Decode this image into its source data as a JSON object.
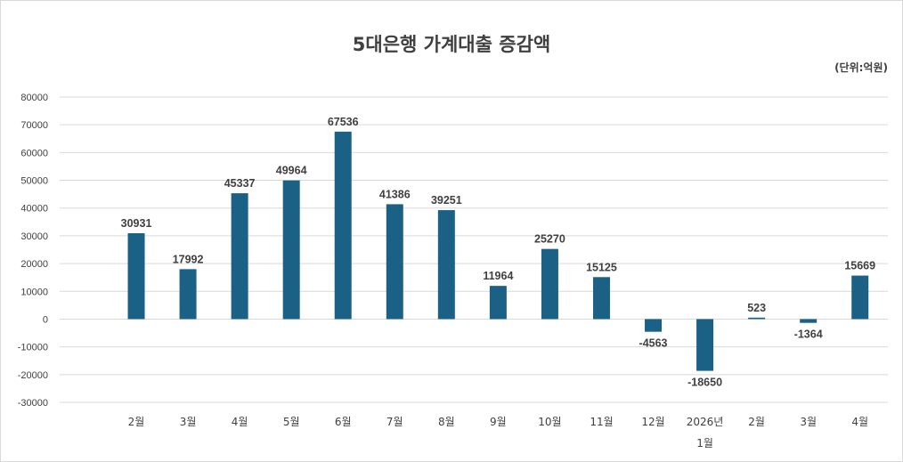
{
  "chart_data": {
    "type": "bar",
    "title": "5대은행 가계대출 증감액",
    "unit_note": "(단위:억원)",
    "categories": [
      [
        "2월"
      ],
      [
        "3월"
      ],
      [
        "4월"
      ],
      [
        "5월"
      ],
      [
        "6월"
      ],
      [
        "7월"
      ],
      [
        "8월"
      ],
      [
        "9월"
      ],
      [
        "10월"
      ],
      [
        "11월"
      ],
      [
        "12월"
      ],
      [
        "2026년",
        "1월"
      ],
      [
        "2월"
      ],
      [
        "3월"
      ],
      [
        "4월"
      ]
    ],
    "values": [
      30931,
      17992,
      45337,
      49964,
      67536,
      41386,
      39251,
      11964,
      25270,
      15125,
      -4563,
      -18650,
      523,
      -1364,
      15669
    ],
    "ylim": [
      -30000,
      80000
    ],
    "yticks": [
      80000,
      70000,
      60000,
      50000,
      40000,
      30000,
      20000,
      10000,
      0,
      -10000,
      -20000,
      -30000
    ],
    "grid": true,
    "bar_color": "#1b6185",
    "gridline_color": "#d9d9d9",
    "text_color": "#404040"
  }
}
